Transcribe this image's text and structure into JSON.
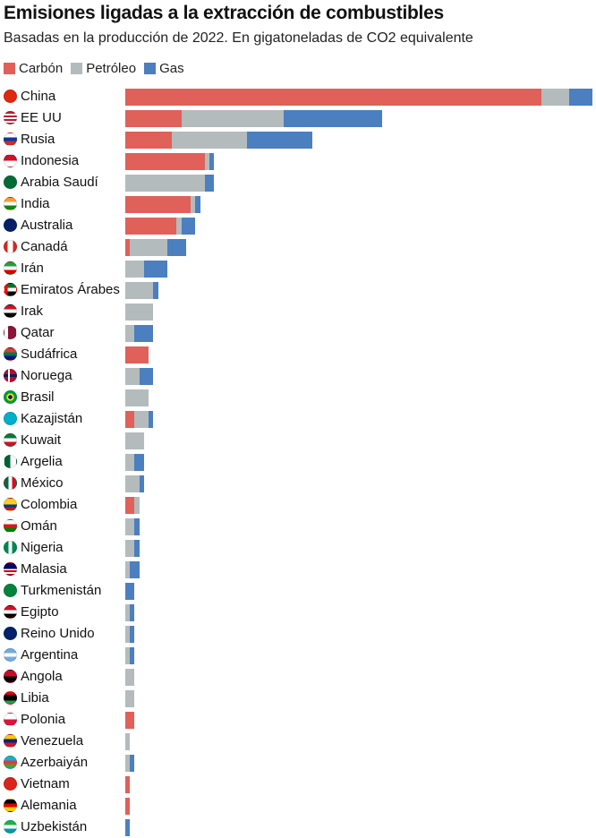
{
  "title": "Emisiones ligadas a la extracción de combustibles",
  "subtitle": "Basadas en la producción de 2022. En gigatoneladas de CO2 equivalente",
  "legend": [
    {
      "label": "Carbón",
      "color": "#e0605a"
    },
    {
      "label": "Petróleo",
      "color": "#b4bbbd"
    },
    {
      "label": "Gas",
      "color": "#4b7fbf"
    }
  ],
  "chart_data": {
    "type": "bar",
    "orientation": "horizontal",
    "stacked": true,
    "legend_position": "top-left",
    "grid": false,
    "xlim": [
      0,
      10
    ],
    "categories": [
      "China",
      "EE UU",
      "Rusia",
      "Indonesia",
      "Arabia Saudí",
      "India",
      "Australia",
      "Canadá",
      "Irán",
      "Emiratos Árabes",
      "Irak",
      "Qatar",
      "Sudáfrica",
      "Noruega",
      "Brasil",
      "Kazajistán",
      "Kuwait",
      "Argelia",
      "México",
      "Colombia",
      "Omán",
      "Nigeria",
      "Malasia",
      "Turkmenistán",
      "Egipto",
      "Reino Unido",
      "Argentina",
      "Angola",
      "Libia",
      "Polonia",
      "Venezuela",
      "Azerbaiyán",
      "Vietnam",
      "Alemania",
      "Uzbekistán"
    ],
    "flags": [
      "cn",
      "us",
      "ru",
      "id",
      "sa",
      "in",
      "au",
      "ca",
      "ir",
      "ae",
      "iq",
      "qa",
      "za",
      "no",
      "br",
      "kz",
      "kw",
      "dz",
      "mx",
      "co",
      "om",
      "ng",
      "my",
      "tm",
      "eg",
      "gb",
      "ar",
      "ao",
      "ly",
      "pl",
      "ve",
      "az",
      "vn",
      "de",
      "uz"
    ],
    "series": [
      {
        "name": "Carbón",
        "color": "#e0605a",
        "values": [
          8.9,
          1.2,
          1.0,
          1.7,
          0,
          1.4,
          1.1,
          0.1,
          0,
          0,
          0,
          0,
          0.5,
          0,
          0,
          0.2,
          0,
          0,
          0,
          0.2,
          0,
          0,
          0,
          0,
          0,
          0,
          0,
          0,
          0,
          0.2,
          0,
          0,
          0.1,
          0.1,
          0
        ]
      },
      {
        "name": "Petróleo",
        "color": "#b4bbbd",
        "values": [
          0.6,
          2.2,
          1.6,
          0.1,
          1.7,
          0.1,
          0.1,
          0.8,
          0.4,
          0.6,
          0.6,
          0.2,
          0,
          0.3,
          0.5,
          0.3,
          0.4,
          0.2,
          0.3,
          0.1,
          0.2,
          0.2,
          0.1,
          0,
          0.1,
          0.1,
          0.1,
          0.2,
          0.2,
          0,
          0.1,
          0.1,
          0,
          0,
          0
        ]
      },
      {
        "name": "Gas",
        "color": "#4b7fbf",
        "values": [
          0.5,
          2.1,
          1.4,
          0.1,
          0.2,
          0.1,
          0.3,
          0.4,
          0.5,
          0.1,
          0,
          0.4,
          0,
          0.3,
          0,
          0.1,
          0,
          0.2,
          0.1,
          0,
          0.1,
          0.1,
          0.2,
          0.2,
          0.1,
          0.1,
          0.1,
          0,
          0,
          0,
          0,
          0.1,
          0,
          0,
          0.1
        ]
      }
    ]
  }
}
